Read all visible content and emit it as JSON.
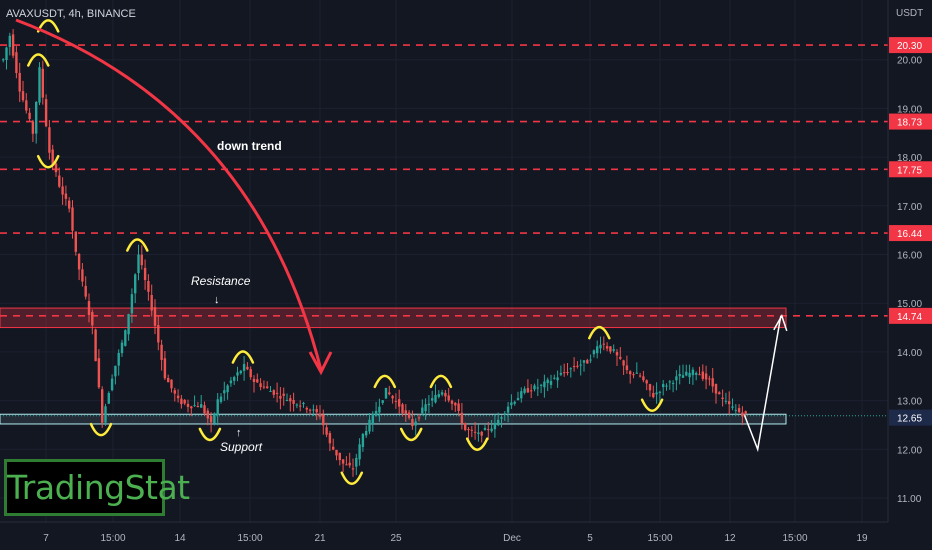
{
  "header": {
    "symbol_title": "AVAXUSDT, 4h, BINANCE",
    "currency": "USDT"
  },
  "brand": {
    "logo_text": "TradingStat"
  },
  "annotations": {
    "trend": "down trend",
    "resistance": "Resistance",
    "support": "Support"
  },
  "colors": {
    "up": "#26a69a",
    "down": "#ef5350",
    "level": "#f23645",
    "swing": "#ffeb3b",
    "support_zone": "#b2ebf2"
  },
  "chart_data": {
    "type": "candlestick",
    "title": "AVAXUSDT, 4h, BINANCE",
    "ylabel": "USDT",
    "ylim": [
      10.5,
      21.0
    ],
    "x_ticks": [
      "7",
      "15:00",
      "14",
      "15:00",
      "21",
      "25",
      "Dec",
      "5",
      "15:00",
      "12",
      "15:00",
      "19"
    ],
    "y_ticks": [
      "20.00",
      "19.00",
      "18.00",
      "17.00",
      "16.00",
      "15.00",
      "14.00",
      "13.00",
      "12.00",
      "11.00"
    ],
    "resistance_levels": [
      "20.30",
      "18.73",
      "17.75",
      "16.44",
      "14.74"
    ],
    "current_price": "12.69",
    "support_level": "12.65",
    "resistance_zone": [
      14.5,
      14.9
    ],
    "support_zone": [
      12.52,
      12.72
    ],
    "price_path": [
      [
        0,
        20.0
      ],
      [
        2,
        20.5
      ],
      [
        5,
        19.4
      ],
      [
        9,
        18.5
      ],
      [
        11,
        19.8
      ],
      [
        14,
        18.1
      ],
      [
        18,
        17.2
      ],
      [
        20,
        17.0
      ],
      [
        22,
        16.0
      ],
      [
        27,
        14.5
      ],
      [
        30,
        12.6
      ],
      [
        33,
        13.5
      ],
      [
        37,
        14.4
      ],
      [
        41,
        16.0
      ],
      [
        45,
        14.9
      ],
      [
        49,
        13.5
      ],
      [
        53,
        13.0
      ],
      [
        56,
        12.9
      ],
      [
        60,
        12.9
      ],
      [
        63,
        12.5
      ],
      [
        65,
        13.0
      ],
      [
        69,
        13.4
      ],
      [
        73,
        13.7
      ],
      [
        76,
        13.4
      ],
      [
        81,
        13.2
      ],
      [
        87,
        13.0
      ],
      [
        91,
        12.9
      ],
      [
        96,
        12.7
      ],
      [
        99,
        12.1
      ],
      [
        103,
        11.7
      ],
      [
        106,
        11.6
      ],
      [
        109,
        12.3
      ],
      [
        113,
        12.8
      ],
      [
        116,
        13.2
      ],
      [
        120,
        12.9
      ],
      [
        124,
        12.5
      ],
      [
        128,
        12.9
      ],
      [
        133,
        13.2
      ],
      [
        137,
        12.9
      ],
      [
        140,
        12.4
      ],
      [
        144,
        12.3
      ],
      [
        149,
        12.5
      ],
      [
        153,
        12.9
      ],
      [
        158,
        13.2
      ],
      [
        163,
        13.3
      ],
      [
        168,
        13.5
      ],
      [
        173,
        13.7
      ],
      [
        177,
        13.8
      ],
      [
        181,
        14.2
      ],
      [
        185,
        14.0
      ],
      [
        189,
        13.6
      ],
      [
        193,
        13.5
      ],
      [
        197,
        13.1
      ],
      [
        200,
        13.3
      ],
      [
        205,
        13.5
      ],
      [
        210,
        13.6
      ],
      [
        214,
        13.4
      ],
      [
        218,
        13.0
      ],
      [
        222,
        12.8
      ],
      [
        225,
        12.7
      ]
    ],
    "projection": [
      [
        225,
        12.7
      ],
      [
        229,
        12.0
      ],
      [
        236,
        14.74
      ]
    ]
  }
}
